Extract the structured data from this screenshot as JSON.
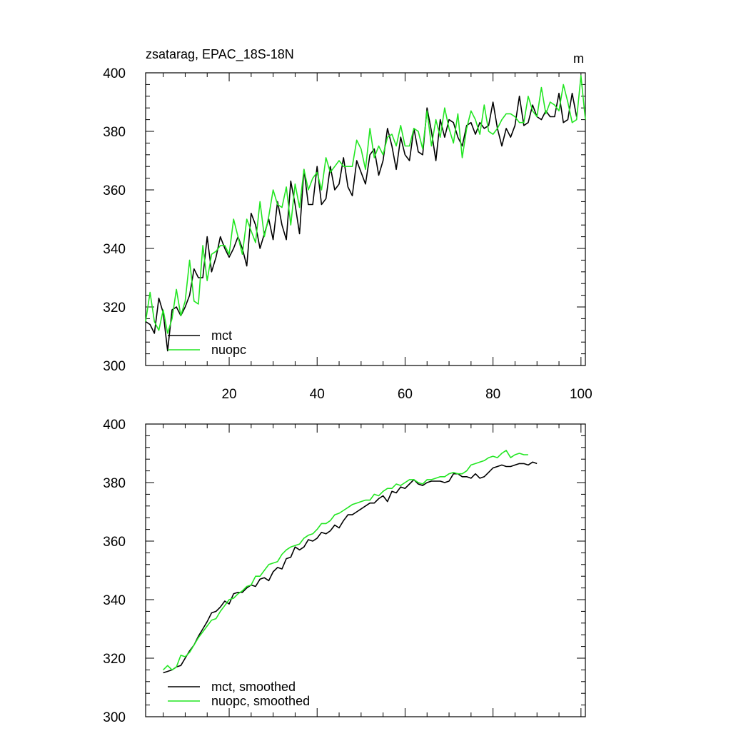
{
  "colors": {
    "mct": "#000000",
    "nuopc": "#22e622"
  },
  "chart_data": [
    {
      "type": "line",
      "title": "zsatarag, EPAC_18S-18N",
      "units": "m",
      "xlim": [
        1,
        101
      ],
      "ylim": [
        300,
        400
      ],
      "xticks": [
        20,
        40,
        60,
        80,
        100
      ],
      "yticks": [
        300,
        320,
        340,
        360,
        380,
        400
      ],
      "legend": {
        "placement": "bottom-left",
        "entries": [
          "mct",
          "nuopc"
        ]
      },
      "series": [
        {
          "name": "mct",
          "x_start": 1,
          "values": [
            315,
            314,
            311,
            323,
            318,
            305,
            319,
            320,
            317,
            320,
            324,
            333,
            330,
            330,
            344,
            332,
            337,
            344,
            340,
            337,
            340,
            344,
            340,
            334,
            352,
            348,
            340,
            345,
            350,
            343,
            356,
            348,
            343,
            363,
            355,
            345,
            367,
            355,
            355,
            368,
            355,
            357,
            368,
            360,
            362,
            371,
            361,
            358,
            370,
            366,
            362,
            372,
            374,
            365,
            370,
            381,
            375,
            367,
            378,
            372,
            370,
            381,
            373,
            372,
            388,
            380,
            370,
            384,
            378,
            384,
            383,
            378,
            375,
            382,
            383,
            379,
            383,
            381,
            382,
            390,
            381,
            375,
            381,
            378,
            382,
            392,
            382,
            383,
            389,
            385,
            384,
            387,
            385,
            385,
            393,
            383,
            384,
            393,
            385
          ]
        },
        {
          "name": "nuopc",
          "x_start": 1,
          "values": [
            315,
            325,
            315,
            312,
            319,
            311,
            316,
            326,
            317,
            322,
            336,
            322,
            321,
            341,
            329,
            338,
            339,
            341,
            341,
            338,
            350,
            344,
            338,
            350,
            346,
            342,
            356,
            344,
            351,
            360,
            355,
            354,
            361,
            348,
            362,
            354,
            367,
            360,
            364,
            366,
            360,
            371,
            366,
            368,
            370,
            368,
            368,
            368,
            377,
            374,
            367,
            381,
            371,
            375,
            372,
            378,
            379,
            375,
            382,
            375,
            375,
            381,
            380,
            374,
            387,
            375,
            384,
            378,
            388,
            381,
            376,
            386,
            371,
            381,
            387,
            384,
            379,
            389,
            380,
            379,
            381,
            384,
            386,
            386,
            385,
            383,
            383,
            392,
            387,
            385,
            395,
            386,
            390,
            389,
            387,
            396,
            390,
            383,
            384,
            399,
            384
          ]
        }
      ]
    },
    {
      "type": "line",
      "title": "",
      "xlim": [
        1,
        101
      ],
      "ylim": [
        300,
        400
      ],
      "xticks": [
        20,
        40,
        60,
        80,
        100
      ],
      "yticks": [
        300,
        320,
        340,
        360,
        380,
        400
      ],
      "legend": {
        "placement": "bottom-left",
        "entries": [
          "mct, smoothed",
          "nuopc, smoothed"
        ]
      },
      "series": [
        {
          "name": "mct, smoothed",
          "x_start": 5,
          "values": [
            315,
            315.5,
            316,
            317,
            317.5,
            320,
            322.5,
            324.5,
            327.5,
            330,
            332.5,
            335.5,
            336,
            337.5,
            339.5,
            338.5,
            342,
            342.5,
            342.5,
            344,
            345,
            344.5,
            347,
            347.5,
            346.5,
            349.5,
            351,
            350.5,
            354,
            354.5,
            358,
            357,
            358,
            360.5,
            360,
            361,
            363,
            362.5,
            363.5,
            365.5,
            364.5,
            367,
            369,
            369,
            370,
            371,
            372,
            373,
            373,
            374.5,
            375.5,
            373.5,
            377,
            376.5,
            378.5,
            378,
            379.5,
            381,
            379.5,
            379,
            380,
            380.5,
            380.5,
            380.5,
            380,
            380.5,
            383,
            383,
            382,
            382,
            381.5,
            383,
            381.5,
            382,
            383.5,
            385,
            385.5,
            386,
            385.5,
            385.5,
            386,
            386.5,
            386.5,
            386,
            387,
            386.5
          ]
        },
        {
          "name": "nuopc, smoothed",
          "x_start": 5,
          "values": [
            316,
            317.5,
            316,
            317,
            321,
            320.5,
            322,
            324.5,
            327,
            329,
            331,
            333,
            333.5,
            336,
            338,
            340,
            340.5,
            342,
            343,
            344.5,
            345,
            348,
            348,
            350,
            352,
            352.5,
            353,
            355.5,
            357,
            358,
            358.5,
            359,
            361,
            362,
            362.5,
            364,
            366,
            366,
            367,
            369,
            369.5,
            370.5,
            371.5,
            372.5,
            373,
            373.5,
            374,
            374,
            376,
            375.5,
            377,
            378,
            378,
            379.5,
            379,
            380,
            381,
            381,
            380,
            379.5,
            381,
            381,
            381.5,
            382,
            382,
            383,
            383.5,
            383,
            383,
            384,
            386,
            386.5,
            387,
            387.5,
            388.5,
            389,
            388.5,
            390,
            391,
            388.5,
            389.5,
            390,
            389.5,
            389.5
          ]
        }
      ]
    }
  ]
}
